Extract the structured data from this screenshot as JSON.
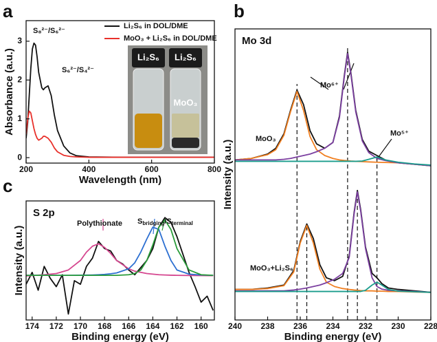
{
  "chart_data": [
    {
      "type": "line",
      "panel_label": "a",
      "x_label": "Wavelength (nm)",
      "y_label": "Absorbance (a.u.)",
      "x": [
        200,
        205,
        210,
        215,
        220,
        225,
        230,
        235,
        240,
        250,
        255,
        260,
        270,
        280,
        290,
        300,
        320,
        340,
        360,
        400,
        500,
        600,
        700,
        800
      ],
      "series": [
        {
          "name": "Li₂S₆ in DOL/DME",
          "color": "#111111",
          "values": [
            0.5,
            0.9,
            1.6,
            2.3,
            2.8,
            2.95,
            2.9,
            2.6,
            2.2,
            1.8,
            1.75,
            1.8,
            1.85,
            1.6,
            1.1,
            0.7,
            0.3,
            0.12,
            0.05,
            0.02,
            0.01,
            0.01,
            0.01,
            0.01
          ]
        },
        {
          "name": "MoO₃ + Li₂S₆ in DOL/DME",
          "color": "#e8302a",
          "values": [
            0.6,
            1.0,
            1.2,
            1.15,
            0.95,
            0.75,
            0.6,
            0.5,
            0.45,
            0.5,
            0.55,
            0.55,
            0.5,
            0.4,
            0.25,
            0.15,
            0.06,
            0.03,
            0.02,
            0.01,
            0.01,
            0.01,
            0.01,
            0.01
          ]
        }
      ],
      "xlim": [
        200,
        800
      ],
      "xticks": [
        200,
        400,
        600,
        800
      ],
      "ylim": [
        -0.14,
        3.53
      ],
      "yticks": [
        0,
        1,
        2,
        3
      ],
      "annotations": [
        "S₈²⁻/S₆²⁻",
        "S₆²⁻/S₄²⁻"
      ],
      "inset_labels": [
        "Li₂S₆",
        "Li₂S₆",
        "MoO₃"
      ]
    },
    {
      "type": "line",
      "panel_label": "b",
      "title": "Mo 3d",
      "x_label": "Binding energy (eV)",
      "y_label": "Intensity (a.u.)",
      "series": [
        {
          "color": "#111111",
          "x": [
            240,
            239,
            238,
            237.5,
            237,
            236.6,
            236.2,
            235.8,
            235.4,
            235,
            234.5,
            234,
            233.6,
            233.3,
            233.1,
            232.9,
            232.6,
            232.2,
            231.8,
            231.3,
            230.8,
            230,
            229,
            228
          ],
          "values": [
            55,
            55.5,
            57,
            59,
            64,
            72,
            79,
            74,
            65,
            60.5,
            59,
            61,
            70,
            84,
            92,
            85,
            72,
            62,
            58,
            56.5,
            55,
            54,
            53.5,
            53
          ]
        },
        {
          "color": "#f07f20",
          "x": [
            240,
            239,
            238,
            237.5,
            237,
            236.6,
            236.2,
            235.8,
            235.4,
            235,
            234.5,
            234,
            233.6,
            233.3,
            233.1,
            232.9,
            232.6,
            232.2,
            231.8,
            231.3,
            230.8,
            230,
            229,
            228
          ],
          "values": [
            55,
            55.5,
            56.8,
            58.5,
            63.5,
            71.5,
            78.5,
            72,
            63,
            58.5,
            56.5,
            55.5,
            55,
            54.8,
            54.7,
            54.6,
            54.5,
            54.4,
            54.3,
            54.2,
            54.1,
            54,
            53.5,
            53
          ]
        },
        {
          "color": "#7b3fa0",
          "x": [
            240,
            239,
            238,
            237.5,
            237,
            236.6,
            236.2,
            235.8,
            235.4,
            235,
            234.5,
            234,
            233.6,
            233.3,
            233.1,
            232.9,
            232.6,
            232.2,
            231.8,
            231.3,
            230.8,
            230,
            229,
            228
          ],
          "values": [
            55,
            55,
            55,
            55,
            55.2,
            55.5,
            56,
            56.5,
            57,
            57.8,
            59,
            61,
            69.5,
            83.5,
            91.5,
            84.5,
            71.5,
            61.5,
            57.5,
            55.5,
            54.8,
            54,
            53.5,
            53
          ]
        },
        {
          "color": "#1a9c8c",
          "x": [
            240,
            239,
            238,
            237.5,
            237,
            236.6,
            236.2,
            235.8,
            235.4,
            235,
            234.5,
            234,
            233.6,
            233.3,
            233.1,
            232.9,
            232.6,
            232.2,
            231.8,
            231.3,
            230.8,
            230,
            229,
            228
          ],
          "values": [
            54.5,
            54.5,
            54.5,
            54.5,
            54.5,
            54.5,
            54.5,
            54.5,
            54.5,
            54.5,
            54.5,
            54.5,
            54.5,
            54.5,
            54.5,
            54.5,
            54.5,
            54.6,
            55.2,
            56,
            55,
            54.2,
            53.6,
            53.2
          ]
        },
        {
          "color": "#111111",
          "x": [
            240,
            239,
            238,
            237,
            236.4,
            236,
            235.6,
            235.2,
            234.8,
            234.4,
            233.9,
            233.4,
            233,
            232.7,
            232.5,
            232.3,
            232,
            231.6,
            231.3,
            231,
            230.6,
            230,
            229,
            228
          ],
          "values": [
            10.5,
            10.5,
            11,
            12,
            17,
            27,
            33,
            28,
            19,
            14.5,
            13.5,
            15,
            22,
            37,
            44.5,
            38,
            25,
            16,
            14.5,
            12.5,
            11,
            10.5,
            10,
            9.5
          ]
        },
        {
          "color": "#f07f20",
          "x": [
            240,
            239,
            238,
            237,
            236.4,
            236,
            235.6,
            235.2,
            234.8,
            234.4,
            233.9,
            233.4,
            233,
            232.7,
            232.5,
            232.3,
            232,
            231.6,
            231.3,
            231,
            230.6,
            230,
            229,
            228
          ],
          "values": [
            10.5,
            10.5,
            10.8,
            11.8,
            16.5,
            26.5,
            32.5,
            26.5,
            17.5,
            13,
            11.5,
            10.8,
            10.5,
            10.3,
            10.2,
            10.1,
            10,
            10,
            9.9,
            9.9,
            9.8,
            9.8,
            9.6,
            9.5
          ]
        },
        {
          "color": "#7b3fa0",
          "x": [
            240,
            239,
            238,
            237,
            236.4,
            236,
            235.6,
            235.2,
            234.8,
            234.4,
            233.9,
            233.4,
            233,
            232.7,
            232.5,
            232.3,
            232,
            231.6,
            231.3,
            231,
            230.6,
            230,
            229,
            228
          ],
          "values": [
            10,
            10,
            10,
            10,
            10.3,
            10.6,
            11,
            11.5,
            12,
            12.8,
            14,
            16,
            21.5,
            36.5,
            44,
            37.5,
            24.5,
            14.5,
            11.5,
            10.6,
            10.2,
            10,
            9.8,
            9.5
          ]
        },
        {
          "color": "#1a9c8c",
          "x": [
            240,
            239,
            238,
            237,
            236.4,
            236,
            235.6,
            235.2,
            234.8,
            234.4,
            233.9,
            233.4,
            233,
            232.7,
            232.5,
            232.3,
            232,
            231.6,
            231.3,
            231,
            230.6,
            230,
            229,
            228
          ],
          "values": [
            9.8,
            9.8,
            9.8,
            9.8,
            9.8,
            9.8,
            9.8,
            9.8,
            9.8,
            9.8,
            9.8,
            9.8,
            9.8,
            9.8,
            9.8,
            9.8,
            10.2,
            12,
            13,
            12,
            10.5,
            9.9,
            9.7,
            9.5
          ]
        }
      ],
      "xlim": [
        240,
        228
      ],
      "xticks": [
        240,
        238,
        236,
        234,
        232,
        230,
        228
      ],
      "ylim": [
        0,
        100
      ],
      "dashed_lines": [
        236.2,
        235.6,
        233.1,
        232.5,
        231.3
      ],
      "annotations": [
        "Mo⁶⁺",
        "Mo⁵⁺",
        "MoO₃",
        "MoO₃+Li₂S₆"
      ]
    },
    {
      "type": "line",
      "panel_label": "c",
      "title": "S 2p",
      "x_label": "Binding energy (eV)",
      "y_label": "Intensity (a.u.)",
      "series": [
        {
          "color": "#111111",
          "x": [
            174.5,
            174,
            173.5,
            173,
            172.5,
            172,
            171.5,
            171,
            170.5,
            170,
            169.5,
            169,
            168.5,
            168,
            167.5,
            167,
            166.5,
            166,
            165.5,
            165,
            164.5,
            164,
            163.5,
            163,
            162.5,
            162,
            161.5,
            161,
            160.5,
            160,
            159.5,
            159
          ],
          "values": [
            30,
            40,
            25,
            45,
            35,
            28,
            38,
            5,
            33,
            30,
            45,
            52,
            66,
            60,
            58,
            50,
            47,
            42,
            38,
            44,
            50,
            60,
            78,
            86,
            82,
            70,
            55,
            40,
            28,
            15,
            20,
            8
          ]
        },
        {
          "color": "#d5468f",
          "x": [
            174.5,
            173,
            172,
            171,
            170,
            169.5,
            169,
            168.5,
            168,
            167.5,
            167,
            166,
            165.5,
            165,
            164.5,
            164,
            163.5,
            163,
            162.5,
            162,
            161,
            160,
            159
          ],
          "values": [
            37,
            38,
            39,
            42,
            50,
            57,
            62,
            64,
            61,
            56,
            50,
            43,
            41,
            40,
            39,
            38.5,
            38,
            37.8,
            37.6,
            37.5,
            37.4,
            37.3,
            37.2
          ]
        },
        {
          "color": "#2c6fd1",
          "x": [
            174.5,
            173,
            172,
            171,
            170,
            169.5,
            169,
            168.5,
            168,
            167.5,
            167,
            166,
            165.5,
            165,
            164.5,
            164,
            163.5,
            163,
            162.5,
            162,
            161,
            160,
            159
          ],
          "values": [
            37.5,
            37.5,
            37.5,
            37.5,
            37.6,
            37.7,
            37.8,
            38,
            38.3,
            38.8,
            39.5,
            43,
            48,
            57,
            68,
            78,
            76,
            62,
            50,
            42,
            38.5,
            37.8,
            37.5
          ]
        },
        {
          "color": "#2a9c3a",
          "x": [
            174.5,
            173,
            172,
            171,
            170,
            169.5,
            169,
            168.5,
            168,
            167.5,
            167,
            166,
            165.5,
            165,
            164.5,
            164,
            163.5,
            163,
            162.5,
            162,
            161,
            160,
            159
          ],
          "values": [
            37.5,
            37.5,
            37.5,
            37.5,
            37.5,
            37.5,
            37.5,
            37.5,
            37.5,
            37.5,
            37.5,
            38,
            39,
            42,
            50,
            63,
            78,
            84,
            76,
            60,
            42,
            38,
            37.5
          ]
        }
      ],
      "xlim": [
        174.5,
        158.9
      ],
      "xticks": [
        174,
        172,
        170,
        168,
        166,
        164,
        162,
        160
      ],
      "ylim": [
        0,
        100
      ],
      "annotations": [
        "Polythionate"
      ],
      "annotation_parts": [
        "S",
        "bridging",
        "/S",
        "terminal"
      ]
    }
  ]
}
